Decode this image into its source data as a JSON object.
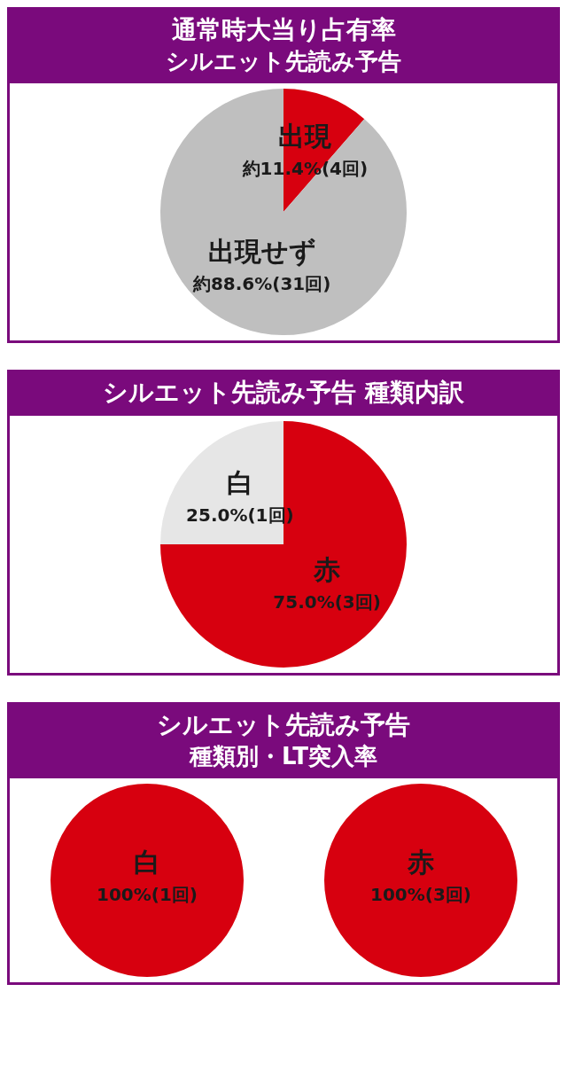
{
  "chart_data": [
    {
      "type": "pie",
      "title": "通常時大当り占有率",
      "subtitle": "シルエット先読み予告",
      "categories": [
        "出現",
        "出現せず"
      ],
      "values": [
        11.4,
        88.6
      ],
      "colors": [
        "#d7000f",
        "#bfbfbf"
      ],
      "value_labels": [
        "約11.4%(4回)",
        "約88.6%(31回)"
      ]
    },
    {
      "type": "pie",
      "title": "シルエット先読み予告 種類内訳",
      "categories": [
        "赤",
        "白"
      ],
      "values": [
        75.0,
        25.0
      ],
      "colors": [
        "#d7000f",
        "#e6e6e6"
      ],
      "value_labels": [
        "75.0%(3回)",
        "25.0%(1回)"
      ]
    },
    {
      "type": "pie",
      "title": "シルエット先読み予告",
      "subtitle": "種類別・LT突入率",
      "categories": [
        "白"
      ],
      "values": [
        100
      ],
      "colors": [
        "#d7000f"
      ],
      "value_labels": [
        "100%(1回)"
      ]
    },
    {
      "type": "pie",
      "categories": [
        "赤"
      ],
      "values": [
        100
      ],
      "colors": [
        "#d7000f"
      ],
      "value_labels": [
        "100%(3回)"
      ]
    }
  ]
}
